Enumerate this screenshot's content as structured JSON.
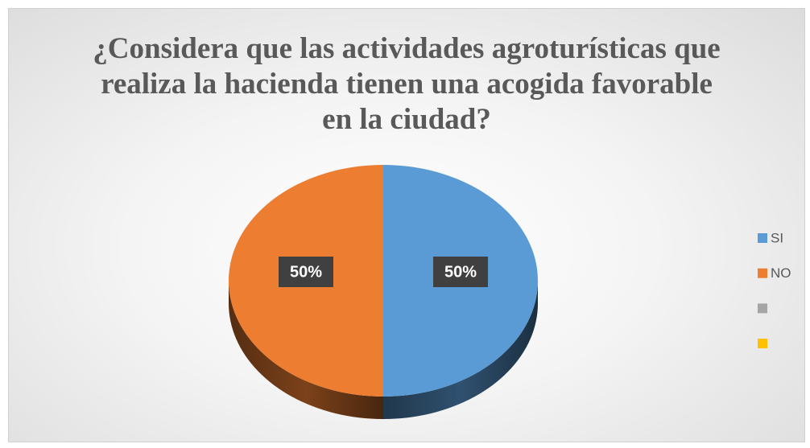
{
  "chart_data": {
    "type": "pie",
    "title": "¿Considera que las actividades agroturísticas que realiza la hacienda tienen una acogida favorable en la ciudad?",
    "categories": [
      "SI",
      "NO",
      null,
      null
    ],
    "values": [
      50,
      50,
      0,
      0
    ],
    "value_labels": [
      "50%",
      "50%",
      null,
      null
    ],
    "colors": [
      "#5b9bd5",
      "#ed7d31",
      "#a5a5a5",
      "#ffc000"
    ],
    "legend": "right"
  }
}
